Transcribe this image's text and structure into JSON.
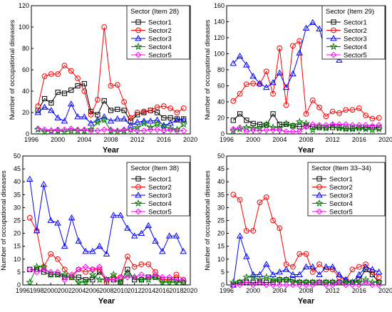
{
  "chart_data": [
    {
      "type": "line",
      "legend_title": "Sector (Item 28)",
      "xlabel": "Year",
      "ylabel": "Number of occupational diseases",
      "xlim": [
        1996,
        2020
      ],
      "ylim": [
        0,
        120
      ],
      "xticks": [
        1996,
        2000,
        2004,
        2008,
        2012,
        2016,
        2020
      ],
      "yticks": [
        0,
        20,
        40,
        60,
        80,
        100,
        120
      ],
      "legend_position": "top-right",
      "x": [
        1997,
        1998,
        1999,
        2000,
        2001,
        2002,
        2003,
        2004,
        2005,
        2006,
        2007,
        2008,
        2009,
        2010,
        2011,
        2012,
        2013,
        2014,
        2015,
        2016,
        2017,
        2018,
        2019
      ],
      "series": [
        {
          "name": "Sector1",
          "color": "#000000",
          "marker": "square",
          "values": [
            22,
            33,
            29,
            39,
            38,
            41,
            45,
            47,
            21,
            18,
            31,
            22,
            23,
            22,
            12,
            18,
            20,
            22,
            20,
            15,
            15,
            14,
            14
          ]
        },
        {
          "name": "Sector2",
          "color": "#ff0000",
          "marker": "circle",
          "values": [
            26,
            54,
            56,
            56,
            64,
            59,
            52,
            40,
            18,
            32,
            100,
            45,
            46,
            30,
            15,
            20,
            21,
            22,
            25,
            26,
            24,
            20,
            24
          ]
        },
        {
          "name": "Sector3",
          "color": "#0000ff",
          "marker": "triangle",
          "values": [
            20,
            25,
            22,
            15,
            12,
            28,
            16,
            16,
            10,
            13,
            16,
            12,
            14,
            14,
            8,
            11,
            12,
            12,
            13,
            8,
            10,
            13,
            13
          ]
        },
        {
          "name": "Sector4",
          "color": "#008000",
          "marker": "star",
          "values": [
            4,
            2,
            3,
            3,
            2,
            3,
            3,
            3,
            4,
            11,
            13,
            3,
            2,
            3,
            4,
            6,
            10,
            6,
            9,
            7,
            5,
            4,
            9
          ]
        },
        {
          "name": "Sector5",
          "color": "#ff00ff",
          "marker": "diamond",
          "values": [
            5,
            4,
            3,
            4,
            4,
            5,
            4,
            4,
            3,
            3,
            4,
            4,
            3,
            4,
            4,
            3,
            3,
            4,
            4,
            3,
            4,
            3,
            3
          ]
        }
      ]
    },
    {
      "type": "line",
      "legend_title": "Sector (Item 29)",
      "xlabel": "Year",
      "ylabel": "Number of occupational diseases",
      "xlim": [
        1996,
        2020
      ],
      "ylim": [
        0,
        160
      ],
      "xticks": [
        1996,
        2000,
        2004,
        2008,
        2012,
        2016,
        2020
      ],
      "yticks": [
        0,
        20,
        40,
        60,
        80,
        100,
        120,
        140,
        160
      ],
      "legend_position": "top-right",
      "x": [
        1997,
        1998,
        1999,
        2000,
        2001,
        2002,
        2003,
        2004,
        2005,
        2006,
        2007,
        2008,
        2009,
        2010,
        2011,
        2012,
        2013,
        2014,
        2015,
        2016,
        2017,
        2018,
        2019
      ],
      "series": [
        {
          "name": "Sector1",
          "color": "#000000",
          "marker": "square",
          "values": [
            17,
            25,
            17,
            13,
            12,
            11,
            25,
            12,
            12,
            10,
            9,
            10,
            9,
            8,
            8,
            8,
            8,
            7,
            7,
            8,
            8,
            8,
            8
          ]
        },
        {
          "name": "Sector2",
          "color": "#ff0000",
          "marker": "circle",
          "values": [
            41,
            50,
            62,
            63,
            62,
            78,
            50,
            107,
            36,
            110,
            116,
            25,
            42,
            33,
            22,
            28,
            26,
            30,
            30,
            32,
            23,
            19,
            20
          ]
        },
        {
          "name": "Sector3",
          "color": "#0000ff",
          "marker": "triangle",
          "values": [
            88,
            97,
            86,
            72,
            63,
            58,
            64,
            76,
            58,
            75,
            101,
            132,
            139,
            131,
            101,
            113,
            92,
            119,
            99,
            121,
            106,
            105,
            123
          ]
        },
        {
          "name": "Sector4",
          "color": "#008000",
          "marker": "star",
          "values": [
            4,
            6,
            8,
            7,
            7,
            12,
            8,
            7,
            13,
            10,
            15,
            13,
            5,
            9,
            7,
            10,
            7,
            6,
            6,
            7,
            6,
            5,
            6
          ]
        },
        {
          "name": "Sector5",
          "color": "#ff00ff",
          "marker": "diamond",
          "values": [
            6,
            8,
            3,
            5,
            4,
            5,
            5,
            5,
            3,
            3,
            3,
            9,
            12,
            11,
            11,
            12,
            12,
            12,
            11,
            11,
            11,
            10,
            11
          ]
        }
      ]
    },
    {
      "type": "line",
      "legend_title": "Sector (Item 38)",
      "xlabel": "Year",
      "ylabel": "Number of occupational diseases",
      "xlim": [
        1996,
        2020
      ],
      "ylim": [
        0,
        50
      ],
      "xticks": [
        1996,
        1998,
        2000,
        2002,
        2004,
        2006,
        2008,
        2010,
        2012,
        2014,
        2016,
        2018,
        2020
      ],
      "yticks": [
        0,
        5,
        10,
        15,
        20,
        25,
        30,
        35,
        40,
        45,
        50
      ],
      "legend_position": "top-right",
      "x": [
        1997,
        1998,
        1999,
        2000,
        2001,
        2002,
        2003,
        2004,
        2005,
        2006,
        2007,
        2008,
        2009,
        2010,
        2011,
        2012,
        2013,
        2014,
        2015,
        2016,
        2017,
        2018,
        2019
      ],
      "series": [
        {
          "name": "Sector1",
          "color": "#000000",
          "marker": "square",
          "values": [
            6,
            6,
            5,
            4,
            4,
            3,
            3,
            3,
            2,
            2,
            5,
            2,
            2,
            1,
            6,
            2,
            2,
            3,
            3,
            2,
            2,
            2,
            1
          ]
        },
        {
          "name": "Sector2",
          "color": "#ff0000",
          "marker": "circle",
          "values": [
            26,
            21,
            7,
            12,
            10,
            6,
            3,
            6,
            5,
            6,
            6,
            1,
            3,
            3,
            11,
            7,
            8,
            8,
            5,
            2,
            2,
            4,
            2
          ]
        },
        {
          "name": "Sector3",
          "color": "#0000ff",
          "marker": "triangle",
          "values": [
            41,
            21,
            39,
            25,
            24,
            15,
            26,
            17,
            13,
            13,
            15,
            12,
            27,
            27,
            22,
            19,
            20,
            23,
            17,
            13,
            19,
            19,
            13
          ]
        },
        {
          "name": "Sector4",
          "color": "#008000",
          "marker": "star",
          "values": [
            1,
            7,
            7,
            4,
            4,
            4,
            3,
            1,
            1,
            4,
            2,
            2,
            4,
            1,
            4,
            3,
            2,
            2,
            3,
            1,
            1,
            1,
            1
          ]
        },
        {
          "name": "Sector5",
          "color": "#ff00ff",
          "marker": "diamond",
          "values": [
            6,
            5,
            6,
            5,
            5,
            2,
            4,
            6,
            7,
            6,
            7,
            2,
            2,
            3,
            3,
            3,
            4,
            3,
            4,
            3,
            3,
            2,
            2
          ]
        }
      ]
    },
    {
      "type": "line",
      "legend_title": "Sector (Item 33–34)",
      "xlabel": "Year",
      "ylabel": "Number of occupational diseases",
      "xlim": [
        1996,
        2020
      ],
      "ylim": [
        0,
        50
      ],
      "xticks": [
        1996,
        2000,
        2004,
        2008,
        2012,
        2016,
        2020
      ],
      "yticks": [
        0,
        5,
        10,
        15,
        20,
        25,
        30,
        35,
        40,
        45,
        50
      ],
      "legend_position": "top-right",
      "x": [
        1997,
        1998,
        1999,
        2000,
        2001,
        2002,
        2003,
        2004,
        2005,
        2006,
        2007,
        2008,
        2009,
        2010,
        2011,
        2012,
        2013,
        2014,
        2015,
        2016,
        2017,
        2018,
        2019
      ],
      "series": [
        {
          "name": "Sector1",
          "color": "#000000",
          "marker": "square",
          "values": [
            0,
            1,
            1,
            1,
            1,
            1,
            1,
            2,
            2,
            2,
            1,
            1,
            1,
            1,
            1,
            1,
            1,
            1,
            1,
            2,
            6,
            4,
            1
          ]
        },
        {
          "name": "Sector2",
          "color": "#ff0000",
          "marker": "circle",
          "values": [
            35,
            33,
            21,
            21,
            32,
            34,
            25,
            22,
            8,
            7,
            12,
            12,
            5,
            8,
            6,
            6,
            3,
            2,
            6,
            7,
            8,
            5,
            3
          ]
        },
        {
          "name": "Sector3",
          "color": "#0000ff",
          "marker": "triangle",
          "values": [
            0,
            19,
            11,
            4,
            4,
            8,
            4,
            5,
            6,
            4,
            4,
            7,
            7,
            4,
            7,
            7,
            4,
            2,
            1,
            4,
            7,
            6,
            5
          ]
        },
        {
          "name": "Sector4",
          "color": "#008000",
          "marker": "star",
          "values": [
            1,
            1,
            3,
            3,
            2,
            3,
            2,
            2,
            2,
            1,
            1,
            1,
            1,
            1,
            1,
            1,
            1,
            1,
            1,
            1,
            2,
            1,
            1
          ]
        },
        {
          "name": "Sector5",
          "color": "#ff00ff",
          "marker": "diamond",
          "values": [
            0,
            0,
            1,
            0,
            1,
            0,
            0,
            0,
            0,
            0,
            0,
            0,
            0,
            1,
            0,
            0,
            1,
            0,
            0,
            0,
            1,
            0,
            0
          ]
        }
      ]
    }
  ]
}
